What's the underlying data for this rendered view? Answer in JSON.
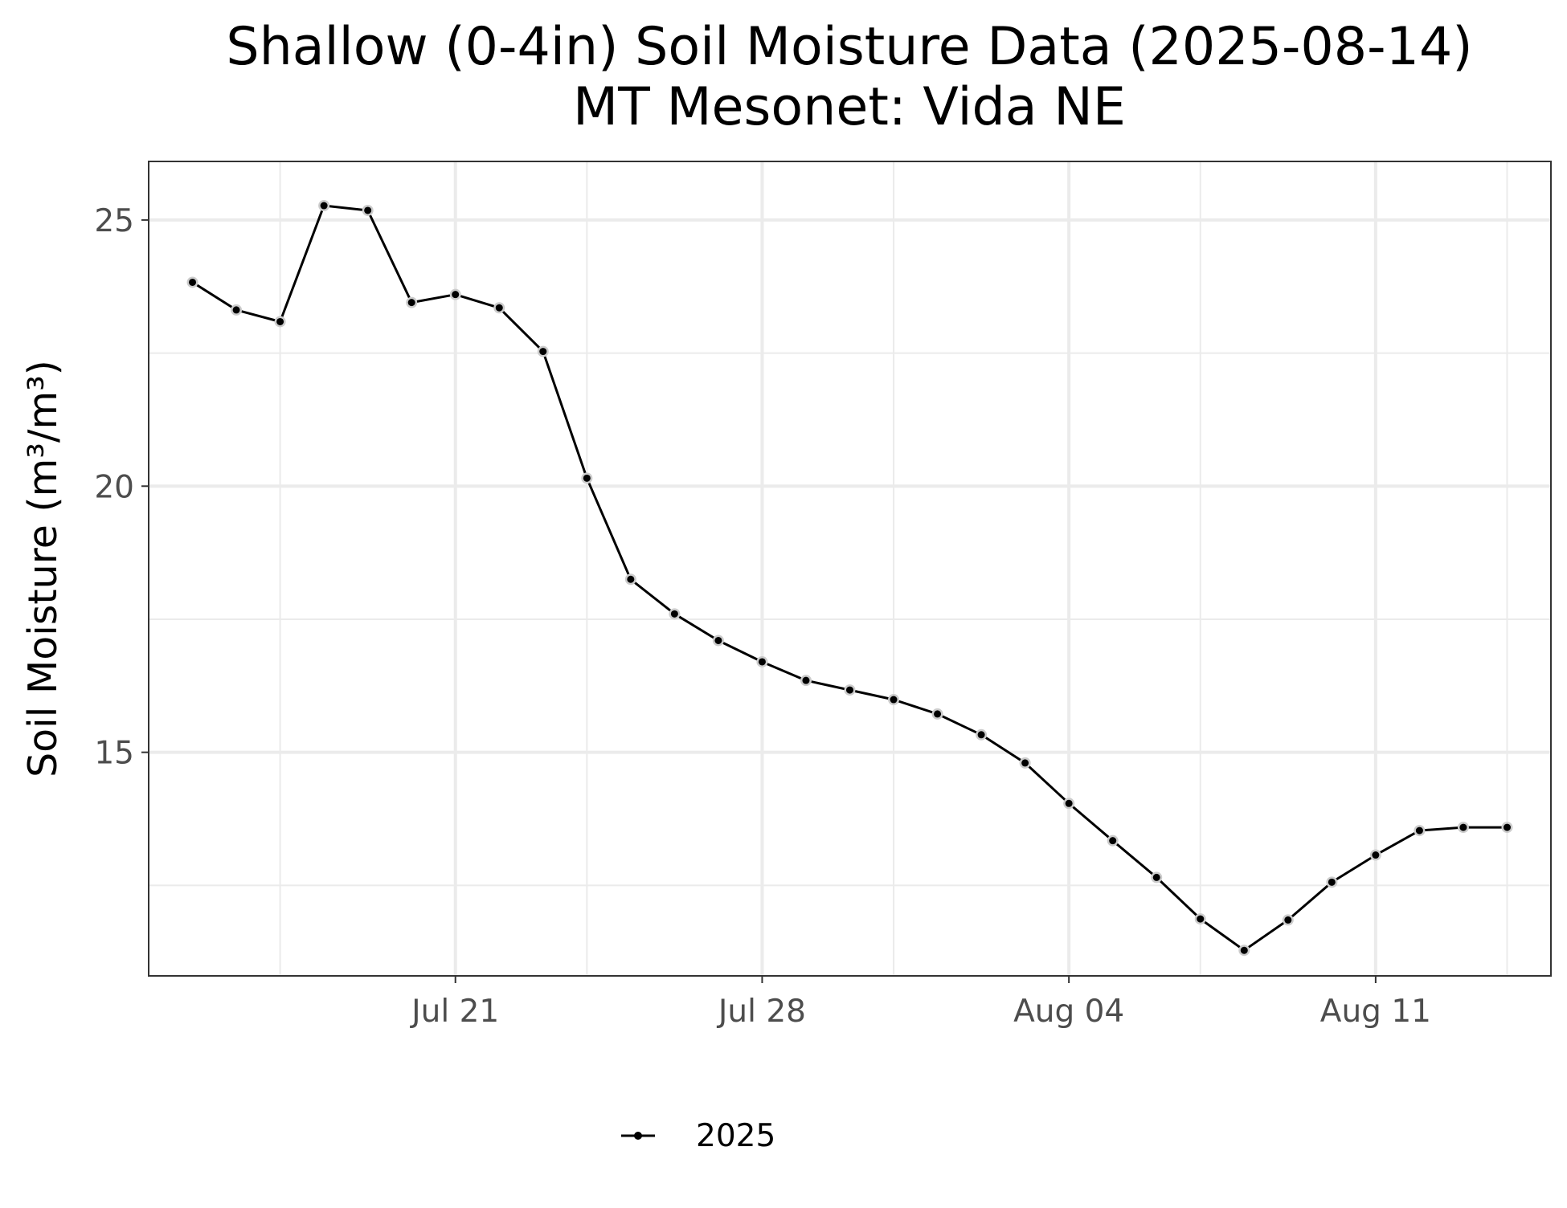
{
  "chart_data": {
    "type": "line",
    "title": "Shallow (0-4in) Soil Moisture Data (2025-08-14)",
    "subtitle": "MT Mesonet: Vida NE",
    "xlabel": "",
    "ylabel": "Soil Moisture (m³/m³)",
    "x_tick_labels": [
      "Jul 21",
      "Jul 28",
      "Aug 04",
      "Aug 11"
    ],
    "x_tick_dates": [
      "2025-07-21",
      "2025-07-28",
      "2025-08-04",
      "2025-08-11"
    ],
    "x_minor_tick_dates": [
      "2025-07-17",
      "2025-07-24",
      "2025-07-31",
      "2025-08-07",
      "2025-08-14"
    ],
    "y_tick_labels": [
      "15",
      "20",
      "25"
    ],
    "y_ticks": [
      15,
      20,
      25
    ],
    "y_minor_ticks": [
      12.5,
      17.5,
      22.5
    ],
    "xlim": [
      "2025-07-14",
      "2025-08-15"
    ],
    "ylim": [
      10.8,
      26.1
    ],
    "grid": true,
    "legend_position": "bottom",
    "series": [
      {
        "name": "2025",
        "color": "#000000",
        "marker_outline_color": "#cccccc",
        "x": [
          "2025-07-15",
          "2025-07-16",
          "2025-07-17",
          "2025-07-18",
          "2025-07-19",
          "2025-07-20",
          "2025-07-21",
          "2025-07-22",
          "2025-07-23",
          "2025-07-24",
          "2025-07-25",
          "2025-07-26",
          "2025-07-27",
          "2025-07-28",
          "2025-07-29",
          "2025-07-30",
          "2025-07-31",
          "2025-08-01",
          "2025-08-02",
          "2025-08-03",
          "2025-08-04",
          "2025-08-05",
          "2025-08-06",
          "2025-08-07",
          "2025-08-08",
          "2025-08-09",
          "2025-08-10",
          "2025-08-11",
          "2025-08-12",
          "2025-08-13",
          "2025-08-14"
        ],
        "values": [
          23.83,
          23.31,
          23.09,
          25.27,
          25.18,
          23.45,
          23.6,
          23.35,
          22.53,
          20.15,
          18.25,
          17.6,
          17.1,
          16.7,
          16.35,
          16.17,
          15.99,
          15.72,
          15.33,
          14.8,
          14.04,
          13.34,
          12.65,
          11.87,
          11.28,
          11.85,
          12.56,
          13.07,
          13.53,
          13.59,
          13.59
        ]
      }
    ]
  }
}
